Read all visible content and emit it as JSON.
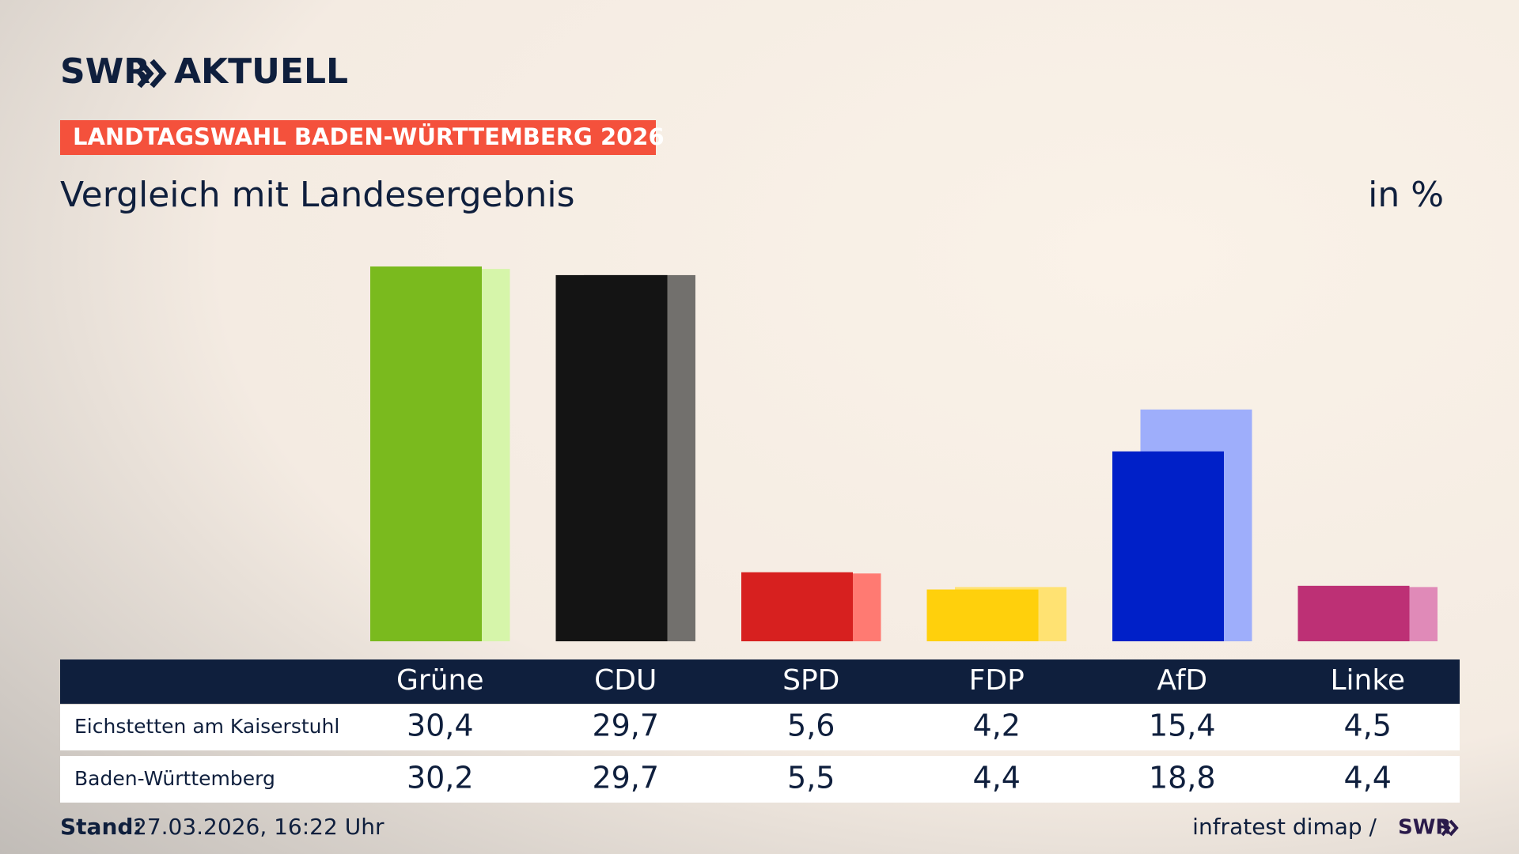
{
  "brand": "SWR",
  "brand_suffix": "AKTUELL",
  "kicker": "LANDTAGSWAHL BADEN-WÜRTTEMBERG 2026",
  "chart_data": {
    "type": "bar",
    "title": "Vergleich mit Landesergebnis",
    "unit": "in %",
    "categories": [
      "Grüne",
      "CDU",
      "SPD",
      "FDP",
      "AfD",
      "Linke"
    ],
    "series": [
      {
        "name": "Eichstetten am Kaiserstuhl",
        "colors": [
          "#7aba1e",
          "#141414",
          "#d7201f",
          "#ffd00c",
          "#0020c8",
          "#bd3075"
        ],
        "values": [
          30.4,
          29.7,
          5.6,
          4.2,
          15.4,
          4.5
        ],
        "value_labels": [
          "30,4",
          "29,7",
          "5,6",
          "4,2",
          "15,4",
          "4,5"
        ]
      },
      {
        "name": "Baden-Württemberg",
        "colors": [
          "#d6f5aa",
          "#72706d",
          "#ff7a72",
          "#ffe272",
          "#9eaefb",
          "#e08ab8"
        ],
        "values": [
          30.2,
          29.7,
          5.5,
          4.4,
          18.8,
          4.4
        ],
        "value_labels": [
          "30,2",
          "29,7",
          "5,5",
          "4,4",
          "18,8",
          "4,4"
        ]
      }
    ]
  },
  "footer": {
    "stand_label": "Stand:",
    "stand": "27.03.2026, 16:22 Uhr",
    "source": "infratest dimap /",
    "source_brand": "SWR"
  }
}
